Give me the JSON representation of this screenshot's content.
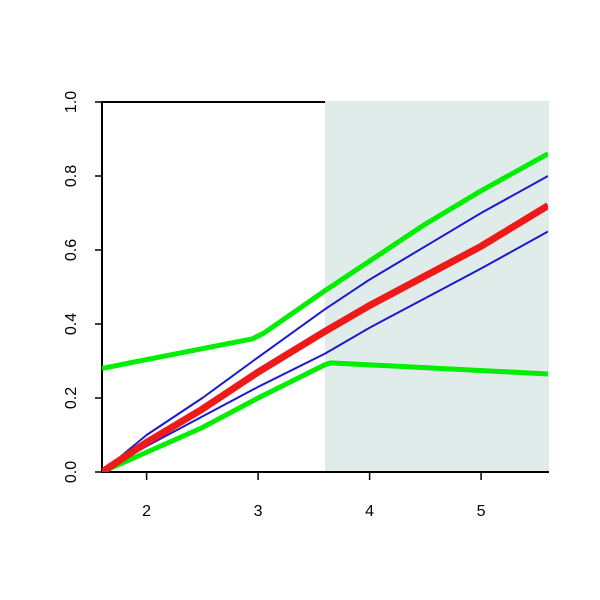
{
  "chart_data": {
    "type": "line",
    "xlim": [
      1.6,
      5.6
    ],
    "ylim": [
      0,
      1
    ],
    "xticks": [
      2,
      3,
      4,
      5
    ],
    "yticks": [
      {
        "value": 0,
        "label": "0.0"
      },
      0.2,
      0.4,
      0.6,
      0.8,
      {
        "value": 1,
        "label": "1.0"
      }
    ],
    "shaded_xrange": [
      3.6,
      5.6
    ],
    "shade_color": "#e0ecea",
    "series": [
      {
        "color": "#00ee00",
        "width": 5,
        "x": [
          1.6,
          2.95,
          3.05,
          3.6,
          4,
          4.5,
          5,
          5.6
        ],
        "values": [
          0.28,
          0.36,
          0.375,
          0.49,
          0.57,
          0.67,
          0.76,
          0.86
        ]
      },
      {
        "color": "#00ee00",
        "width": 5,
        "x": [
          1.6,
          2.5,
          3,
          3.6,
          3.65,
          5.6
        ],
        "values": [
          0,
          0.12,
          0.2,
          0.29,
          0.295,
          0.265
        ]
      },
      {
        "color": "#1a1acd",
        "width": 2,
        "x": [
          1.6,
          2,
          2.5,
          3,
          3.6,
          4,
          4.5,
          5,
          5.6
        ],
        "values": [
          0,
          0.1,
          0.2,
          0.31,
          0.44,
          0.52,
          0.61,
          0.7,
          0.8
        ]
      },
      {
        "color": "#1a1acd",
        "width": 2,
        "x": [
          1.6,
          2,
          2.5,
          3,
          3.6,
          4,
          4.5,
          5,
          5.6
        ],
        "values": [
          0,
          0.07,
          0.15,
          0.23,
          0.32,
          0.39,
          0.47,
          0.55,
          0.65
        ]
      },
      {
        "color": "#ee1a1a",
        "width": 7,
        "x": [
          1.6,
          2,
          2.5,
          3,
          3.6,
          4,
          4.5,
          5,
          5.6
        ],
        "values": [
          0,
          0.08,
          0.17,
          0.27,
          0.38,
          0.45,
          0.53,
          0.61,
          0.72
        ]
      }
    ]
  }
}
